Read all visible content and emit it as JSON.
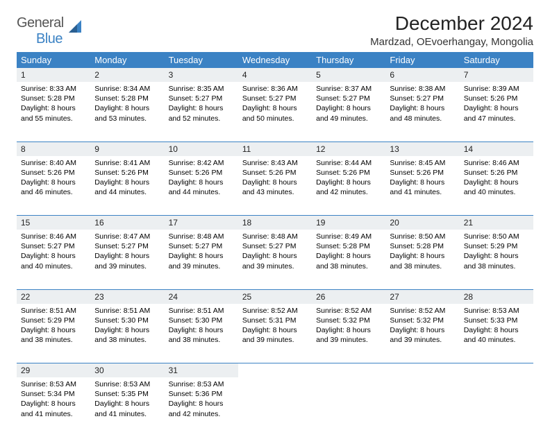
{
  "brand": {
    "part1": "General",
    "part2": "Blue"
  },
  "title": "December 2024",
  "location": "Mardzad, OEvoerhangay, Mongolia",
  "colors": {
    "header_bg": "#3b82c4",
    "header_text": "#ffffff",
    "daynum_bg": "#eceff1",
    "border": "#3b82c4",
    "logo_gray": "#555555",
    "logo_blue": "#3b82c4"
  },
  "weekdays": [
    "Sunday",
    "Monday",
    "Tuesday",
    "Wednesday",
    "Thursday",
    "Friday",
    "Saturday"
  ],
  "weeks": [
    [
      {
        "n": "1",
        "sr": "8:33 AM",
        "ss": "5:28 PM",
        "dl": "8 hours and 55 minutes."
      },
      {
        "n": "2",
        "sr": "8:34 AM",
        "ss": "5:28 PM",
        "dl": "8 hours and 53 minutes."
      },
      {
        "n": "3",
        "sr": "8:35 AM",
        "ss": "5:27 PM",
        "dl": "8 hours and 52 minutes."
      },
      {
        "n": "4",
        "sr": "8:36 AM",
        "ss": "5:27 PM",
        "dl": "8 hours and 50 minutes."
      },
      {
        "n": "5",
        "sr": "8:37 AM",
        "ss": "5:27 PM",
        "dl": "8 hours and 49 minutes."
      },
      {
        "n": "6",
        "sr": "8:38 AM",
        "ss": "5:27 PM",
        "dl": "8 hours and 48 minutes."
      },
      {
        "n": "7",
        "sr": "8:39 AM",
        "ss": "5:26 PM",
        "dl": "8 hours and 47 minutes."
      }
    ],
    [
      {
        "n": "8",
        "sr": "8:40 AM",
        "ss": "5:26 PM",
        "dl": "8 hours and 46 minutes."
      },
      {
        "n": "9",
        "sr": "8:41 AM",
        "ss": "5:26 PM",
        "dl": "8 hours and 44 minutes."
      },
      {
        "n": "10",
        "sr": "8:42 AM",
        "ss": "5:26 PM",
        "dl": "8 hours and 44 minutes."
      },
      {
        "n": "11",
        "sr": "8:43 AM",
        "ss": "5:26 PM",
        "dl": "8 hours and 43 minutes."
      },
      {
        "n": "12",
        "sr": "8:44 AM",
        "ss": "5:26 PM",
        "dl": "8 hours and 42 minutes."
      },
      {
        "n": "13",
        "sr": "8:45 AM",
        "ss": "5:26 PM",
        "dl": "8 hours and 41 minutes."
      },
      {
        "n": "14",
        "sr": "8:46 AM",
        "ss": "5:26 PM",
        "dl": "8 hours and 40 minutes."
      }
    ],
    [
      {
        "n": "15",
        "sr": "8:46 AM",
        "ss": "5:27 PM",
        "dl": "8 hours and 40 minutes."
      },
      {
        "n": "16",
        "sr": "8:47 AM",
        "ss": "5:27 PM",
        "dl": "8 hours and 39 minutes."
      },
      {
        "n": "17",
        "sr": "8:48 AM",
        "ss": "5:27 PM",
        "dl": "8 hours and 39 minutes."
      },
      {
        "n": "18",
        "sr": "8:48 AM",
        "ss": "5:27 PM",
        "dl": "8 hours and 39 minutes."
      },
      {
        "n": "19",
        "sr": "8:49 AM",
        "ss": "5:28 PM",
        "dl": "8 hours and 38 minutes."
      },
      {
        "n": "20",
        "sr": "8:50 AM",
        "ss": "5:28 PM",
        "dl": "8 hours and 38 minutes."
      },
      {
        "n": "21",
        "sr": "8:50 AM",
        "ss": "5:29 PM",
        "dl": "8 hours and 38 minutes."
      }
    ],
    [
      {
        "n": "22",
        "sr": "8:51 AM",
        "ss": "5:29 PM",
        "dl": "8 hours and 38 minutes."
      },
      {
        "n": "23",
        "sr": "8:51 AM",
        "ss": "5:30 PM",
        "dl": "8 hours and 38 minutes."
      },
      {
        "n": "24",
        "sr": "8:51 AM",
        "ss": "5:30 PM",
        "dl": "8 hours and 38 minutes."
      },
      {
        "n": "25",
        "sr": "8:52 AM",
        "ss": "5:31 PM",
        "dl": "8 hours and 39 minutes."
      },
      {
        "n": "26",
        "sr": "8:52 AM",
        "ss": "5:32 PM",
        "dl": "8 hours and 39 minutes."
      },
      {
        "n": "27",
        "sr": "8:52 AM",
        "ss": "5:32 PM",
        "dl": "8 hours and 39 minutes."
      },
      {
        "n": "28",
        "sr": "8:53 AM",
        "ss": "5:33 PM",
        "dl": "8 hours and 40 minutes."
      }
    ],
    [
      {
        "n": "29",
        "sr": "8:53 AM",
        "ss": "5:34 PM",
        "dl": "8 hours and 41 minutes."
      },
      {
        "n": "30",
        "sr": "8:53 AM",
        "ss": "5:35 PM",
        "dl": "8 hours and 41 minutes."
      },
      {
        "n": "31",
        "sr": "8:53 AM",
        "ss": "5:36 PM",
        "dl": "8 hours and 42 minutes."
      },
      null,
      null,
      null,
      null
    ]
  ],
  "labels": {
    "sunrise": "Sunrise:",
    "sunset": "Sunset:",
    "daylight": "Daylight:"
  }
}
